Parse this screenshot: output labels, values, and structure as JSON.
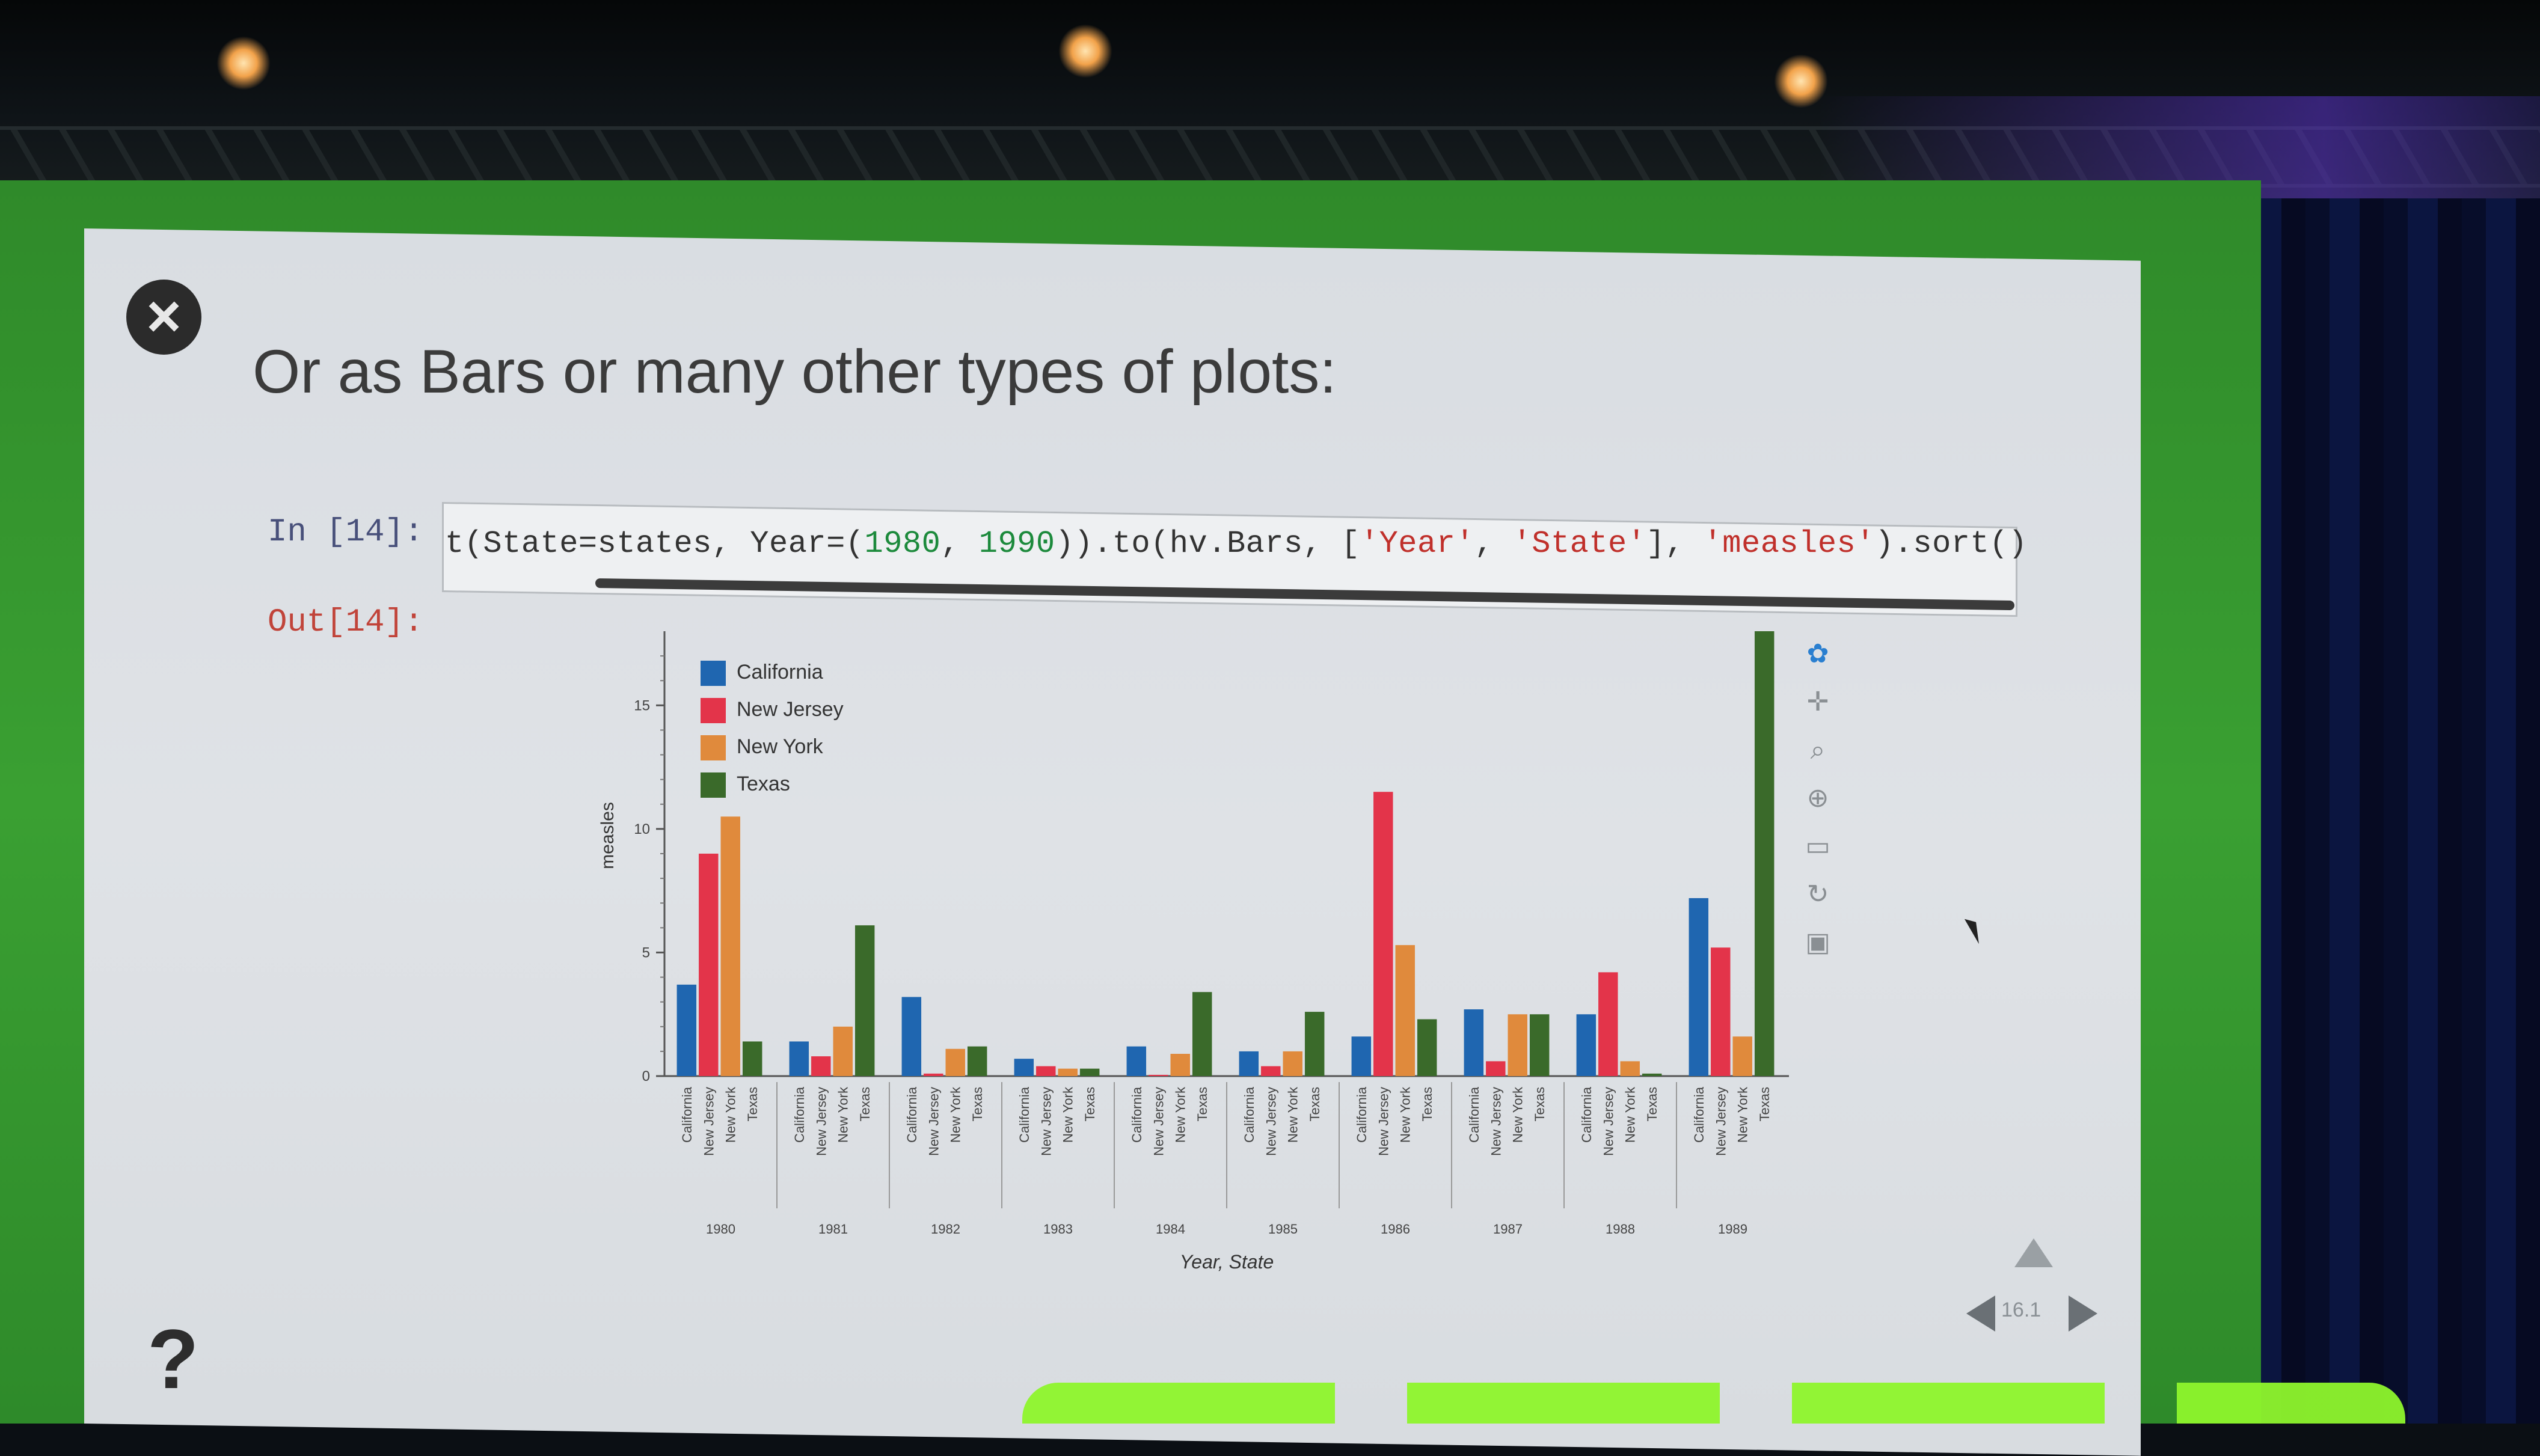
{
  "slide": {
    "title": "Or as Bars or many other types of plots:",
    "help_mark": "?",
    "nav_label": "16.1"
  },
  "notebook": {
    "in_prompt": "In [14]:",
    "out_prompt": "Out[14]:",
    "code_segments": [
      {
        "text": "t(State=states, Year=(",
        "kind": "plain"
      },
      {
        "text": "1980",
        "kind": "num"
      },
      {
        "text": ", ",
        "kind": "plain"
      },
      {
        "text": "1990",
        "kind": "num"
      },
      {
        "text": ")).to(hv.Bars, [",
        "kind": "plain"
      },
      {
        "text": "'Year'",
        "kind": "str"
      },
      {
        "text": ", ",
        "kind": "plain"
      },
      {
        "text": "'State'",
        "kind": "str"
      },
      {
        "text": "], ",
        "kind": "plain"
      },
      {
        "text": "'measles'",
        "kind": "str"
      },
      {
        "text": ").sort()",
        "kind": "plain"
      }
    ]
  },
  "colors": {
    "California": "#1f66b0",
    "New Jersey": "#e3344a",
    "New York": "#e08a3c",
    "Texas": "#3a6a2a"
  },
  "toolbar": {
    "icons": [
      "bokeh-logo-icon",
      "pan-icon",
      "box-zoom-icon",
      "wheel-zoom-icon",
      "box-select-icon",
      "reset-icon",
      "save-icon"
    ]
  },
  "chart_data": {
    "type": "bar",
    "title": "",
    "xlabel": "Year, State",
    "ylabel": "measles",
    "ylim": [
      0,
      18
    ],
    "yticks": [
      0,
      5,
      10,
      15
    ],
    "grid": false,
    "legend_position": "top-left",
    "categories": [
      "1980",
      "1981",
      "1982",
      "1983",
      "1984",
      "1985",
      "1986",
      "1987",
      "1988",
      "1989"
    ],
    "states": [
      "California",
      "New Jersey",
      "New York",
      "Texas"
    ],
    "series": [
      {
        "name": "California",
        "values": [
          3.7,
          1.4,
          3.2,
          0.7,
          1.2,
          1.0,
          1.6,
          2.7,
          2.5,
          7.2
        ]
      },
      {
        "name": "New Jersey",
        "values": [
          9.0,
          0.8,
          0.1,
          0.4,
          0.05,
          0.4,
          11.5,
          0.6,
          4.2,
          5.2
        ]
      },
      {
        "name": "New York",
        "values": [
          10.5,
          2.0,
          1.1,
          0.3,
          0.9,
          1.0,
          5.3,
          2.5,
          0.6,
          1.6
        ]
      },
      {
        "name": "Texas",
        "values": [
          1.4,
          6.1,
          1.2,
          0.3,
          3.4,
          2.6,
          2.3,
          2.5,
          0.1,
          18.0
        ]
      }
    ]
  }
}
